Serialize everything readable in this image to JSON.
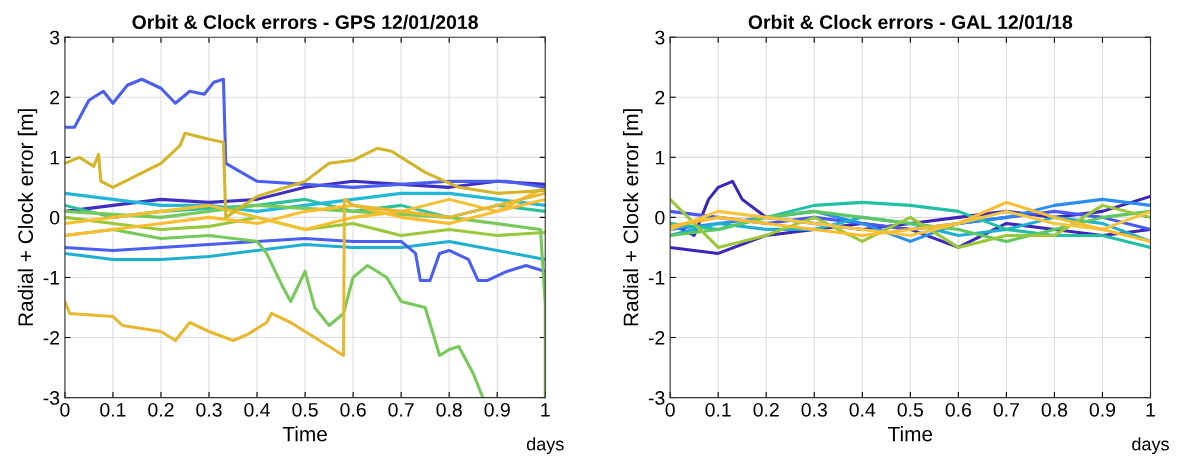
{
  "chart_data": [
    {
      "type": "line",
      "title": "Orbit & Clock errors - GPS 12/01/2018",
      "xlabel": "Time",
      "ylabel": "Radial + Clock error [m]",
      "annotations": [
        "days"
      ],
      "xlim": [
        0,
        1
      ],
      "ylim": [
        -3,
        3
      ],
      "xticks": [
        0,
        0.1,
        0.2,
        0.3,
        0.4,
        0.5,
        0.6,
        0.7,
        0.8,
        0.9,
        1
      ],
      "yticks": [
        -3,
        -2,
        -1,
        0,
        1,
        2,
        3
      ],
      "grid": true,
      "legend": false,
      "marker": "none",
      "line_style": "solid",
      "series": [
        {
          "color": "#3f2fc0",
          "x": [
            0,
            0.1,
            0.2,
            0.3,
            0.4,
            0.5,
            0.6,
            0.7,
            0.8,
            0.9,
            1
          ],
          "values": [
            0.1,
            0.2,
            0.3,
            0.25,
            0.3,
            0.5,
            0.6,
            0.55,
            0.5,
            0.6,
            0.55
          ]
        },
        {
          "color": "#1fb0d0",
          "x": [
            0,
            0.1,
            0.2,
            0.3,
            0.4,
            0.5,
            0.6,
            0.7,
            0.8,
            0.9,
            1
          ],
          "values": [
            -0.6,
            -0.7,
            -0.7,
            -0.65,
            -0.55,
            -0.45,
            -0.5,
            -0.5,
            -0.4,
            -0.55,
            -0.7
          ]
        },
        {
          "color": "#4a5ff0",
          "x": [
            0,
            0.1,
            0.2,
            0.3,
            0.4,
            0.5,
            0.6,
            0.7,
            0.73,
            0.74,
            0.76,
            0.78,
            0.8,
            0.84,
            0.86,
            0.88,
            0.92,
            0.96,
            1
          ],
          "values": [
            -0.5,
            -0.55,
            -0.5,
            -0.45,
            -0.4,
            -0.35,
            -0.4,
            -0.4,
            -0.6,
            -1.05,
            -1.05,
            -0.6,
            -0.55,
            -0.7,
            -1.05,
            -1.05,
            -0.9,
            -0.8,
            -0.9
          ]
        },
        {
          "color": "#2dc09a",
          "x": [
            0,
            0.1,
            0.2,
            0.3,
            0.4,
            0.5,
            0.6,
            0.7,
            0.8,
            0.9,
            1
          ],
          "values": [
            0.2,
            0.0,
            0.1,
            0.15,
            0.2,
            0.3,
            0.1,
            0.2,
            0.0,
            0.2,
            0.1
          ]
        },
        {
          "color": "#22b8d8",
          "x": [
            0,
            0.1,
            0.2,
            0.3,
            0.4,
            0.5,
            0.6,
            0.7,
            0.8,
            0.9,
            1
          ],
          "values": [
            0.4,
            0.3,
            0.2,
            0.2,
            0.1,
            0.2,
            0.3,
            0.4,
            0.4,
            0.3,
            0.2
          ]
        },
        {
          "color": "#9bc83a",
          "x": [
            0,
            0.1,
            0.2,
            0.3,
            0.4,
            0.5,
            0.6,
            0.7,
            0.8,
            0.9,
            1
          ],
          "values": [
            0.0,
            -0.1,
            -0.2,
            -0.15,
            0.0,
            -0.2,
            -0.1,
            -0.3,
            -0.2,
            -0.3,
            -0.25
          ]
        },
        {
          "color": "#77c95a",
          "x": [
            0,
            0.1,
            0.2,
            0.3,
            0.4,
            0.42,
            0.45,
            0.47,
            0.5,
            0.52,
            0.55,
            0.58,
            0.6,
            0.63,
            0.67,
            0.7,
            0.75,
            0.78,
            0.8,
            0.82,
            0.85,
            0.87
          ],
          "values": [
            -0.3,
            -0.2,
            -0.35,
            -0.3,
            -0.4,
            -0.6,
            -1.1,
            -1.4,
            -0.9,
            -1.5,
            -1.8,
            -1.6,
            -1.0,
            -0.8,
            -1.0,
            -1.4,
            -1.5,
            -2.3,
            -2.2,
            -2.15,
            -2.6,
            -3.0
          ]
        },
        {
          "color": "#77c95a",
          "x": [
            0,
            0.2,
            0.4,
            0.6,
            0.8,
            0.99,
            1,
            1
          ],
          "values": [
            0.1,
            0.0,
            0.2,
            0.1,
            0.0,
            -0.2,
            -1.45,
            -3.0
          ]
        },
        {
          "color": "#f5c02f",
          "x": [
            0,
            0.1,
            0.2,
            0.3,
            0.4,
            0.5,
            0.6,
            0.7,
            0.8,
            0.9,
            1
          ],
          "values": [
            -0.1,
            0.0,
            0.1,
            0.2,
            0.0,
            -0.2,
            0.0,
            0.1,
            0.3,
            0.1,
            0.5
          ]
        },
        {
          "color": "#fbbd30",
          "x": [
            0,
            0.1,
            0.2,
            0.3,
            0.4,
            0.5,
            0.6,
            0.7,
            0.8,
            0.9,
            1
          ],
          "values": [
            -0.3,
            -0.2,
            -0.1,
            0.0,
            -0.1,
            0.1,
            0.2,
            0.0,
            -0.1,
            0.1,
            0.3
          ]
        },
        {
          "color": "#4a5ff0",
          "x": [
            0,
            0.02,
            0.05,
            0.08,
            0.1,
            0.13,
            0.16,
            0.2,
            0.23,
            0.26,
            0.29,
            0.31,
            0.33,
            0.335,
            0.4,
            0.6,
            0.8,
            0.92,
            1
          ],
          "values": [
            1.5,
            1.5,
            1.95,
            2.1,
            1.9,
            2.2,
            2.3,
            2.15,
            1.9,
            2.1,
            2.05,
            2.25,
            2.3,
            0.9,
            0.6,
            0.5,
            0.6,
            0.6,
            0.5
          ]
        },
        {
          "color": "#d4b52a",
          "x": [
            0,
            0.03,
            0.06,
            0.07,
            0.075,
            0.1,
            0.15,
            0.2,
            0.24,
            0.25,
            0.3,
            0.33,
            0.335,
            0.4,
            0.5,
            0.55,
            0.6,
            0.65,
            0.68,
            0.75,
            0.82,
            0.9,
            1
          ],
          "values": [
            0.9,
            1.0,
            0.85,
            1.05,
            0.6,
            0.5,
            0.7,
            0.9,
            1.2,
            1.4,
            1.3,
            1.25,
            0.0,
            0.35,
            0.6,
            0.9,
            0.95,
            1.15,
            1.1,
            0.75,
            0.5,
            0.4,
            0.45
          ]
        },
        {
          "color": "#e8b830",
          "x": [
            0,
            0.01,
            0.1,
            0.12,
            0.2,
            0.23,
            0.26,
            0.3,
            0.35,
            0.38,
            0.42,
            0.43,
            0.47,
            0.5,
            0.55,
            0.58,
            0.582,
            0.6,
            0.7,
            0.8,
            0.9,
            1
          ],
          "values": [
            -1.4,
            -1.6,
            -1.65,
            -1.8,
            -1.9,
            -2.05,
            -1.75,
            -1.9,
            -2.05,
            -1.95,
            -1.75,
            -1.6,
            -1.75,
            -1.9,
            -2.15,
            -2.3,
            0.3,
            0.2,
            0.1,
            0.0,
            0.2,
            0.4
          ]
        }
      ]
    },
    {
      "type": "line",
      "title": "Orbit & Clock errors - GAL 12/01/18",
      "xlabel": "Time",
      "ylabel": "Radial + Clock error [m]",
      "annotations": [
        "days"
      ],
      "xlim": [
        0,
        1
      ],
      "ylim": [
        -3,
        3
      ],
      "xticks": [
        0,
        0.1,
        0.2,
        0.3,
        0.4,
        0.5,
        0.6,
        0.7,
        0.8,
        0.9,
        1
      ],
      "yticks": [
        -3,
        -2,
        -1,
        0,
        1,
        2,
        3
      ],
      "grid": true,
      "legend": false,
      "marker": "none",
      "line_style": "solid",
      "series": [
        {
          "color": "#3e26b8",
          "x": [
            0,
            0.05,
            0.08,
            0.1,
            0.13,
            0.15,
            0.2,
            0.3,
            0.4,
            0.5,
            0.6,
            0.7,
            0.8,
            0.9,
            1
          ],
          "values": [
            -0.1,
            -0.3,
            0.3,
            0.5,
            0.6,
            0.3,
            0.0,
            -0.1,
            -0.2,
            -0.1,
            0.0,
            0.1,
            0.0,
            0.1,
            0.35
          ]
        },
        {
          "color": "#3e26b8",
          "x": [
            0,
            0.1,
            0.2,
            0.3,
            0.4,
            0.5,
            0.6,
            0.7,
            0.8,
            0.9,
            1
          ],
          "values": [
            -0.5,
            -0.6,
            -0.3,
            -0.2,
            -0.1,
            -0.2,
            -0.5,
            -0.1,
            -0.2,
            -0.3,
            -0.2
          ]
        },
        {
          "color": "#4858f0",
          "x": [
            0,
            0.1,
            0.2,
            0.3,
            0.4,
            0.5,
            0.6,
            0.7,
            0.8,
            0.9,
            1
          ],
          "values": [
            0.1,
            0.0,
            -0.1,
            0.0,
            -0.1,
            -0.2,
            -0.1,
            0.0,
            0.1,
            0.0,
            -0.2
          ]
        },
        {
          "color": "#2a8ef0",
          "x": [
            0,
            0.1,
            0.2,
            0.3,
            0.4,
            0.5,
            0.6,
            0.7,
            0.8,
            0.9,
            1
          ],
          "values": [
            -0.2,
            -0.1,
            0.0,
            0.1,
            -0.1,
            -0.4,
            -0.1,
            0.0,
            0.2,
            0.3,
            0.2
          ]
        },
        {
          "color": "#1fb0d0",
          "x": [
            0,
            0.1,
            0.2,
            0.3,
            0.4,
            0.5,
            0.6,
            0.7,
            0.8,
            0.9,
            1
          ],
          "values": [
            -0.3,
            -0.1,
            -0.2,
            -0.2,
            0.0,
            -0.1,
            -0.3,
            -0.2,
            0.0,
            -0.1,
            -0.4
          ]
        },
        {
          "color": "#21c0a5",
          "x": [
            0,
            0.1,
            0.2,
            0.3,
            0.4,
            0.5,
            0.6,
            0.7,
            0.8,
            0.9,
            1
          ],
          "values": [
            -0.1,
            -0.2,
            0.0,
            0.2,
            0.25,
            0.2,
            0.1,
            -0.2,
            -0.3,
            -0.3,
            -0.5
          ]
        },
        {
          "color": "#5dc862",
          "x": [
            0,
            0.1,
            0.2,
            0.3,
            0.4,
            0.5,
            0.6,
            0.7,
            0.8,
            0.9,
            1
          ],
          "values": [
            -0.3,
            -0.2,
            0.0,
            0.1,
            0.0,
            -0.1,
            -0.2,
            -0.4,
            -0.2,
            0.0,
            0.1
          ]
        },
        {
          "color": "#9bc83a",
          "x": [
            0,
            0.1,
            0.2,
            0.3,
            0.4,
            0.5,
            0.6,
            0.7,
            0.8,
            0.9,
            1
          ],
          "values": [
            0.3,
            -0.5,
            -0.3,
            0.0,
            -0.4,
            0.0,
            -0.5,
            -0.3,
            -0.3,
            0.2,
            0.0
          ]
        },
        {
          "color": "#f7c640",
          "x": [
            0,
            0.1,
            0.2,
            0.3,
            0.4,
            0.5,
            0.6,
            0.7,
            0.8,
            0.9,
            1
          ],
          "values": [
            -0.2,
            0.1,
            0.0,
            -0.1,
            -0.2,
            -0.3,
            -0.1,
            0.1,
            -0.1,
            -0.2,
            0.1
          ]
        },
        {
          "color": "#fbbd30",
          "x": [
            0,
            0.1,
            0.2,
            0.3,
            0.4,
            0.5,
            0.6,
            0.7,
            0.8,
            0.9,
            1
          ],
          "values": [
            -0.15,
            0.0,
            -0.1,
            -0.2,
            -0.3,
            -0.2,
            -0.1,
            0.25,
            0.0,
            -0.2,
            -0.4
          ]
        }
      ]
    }
  ]
}
